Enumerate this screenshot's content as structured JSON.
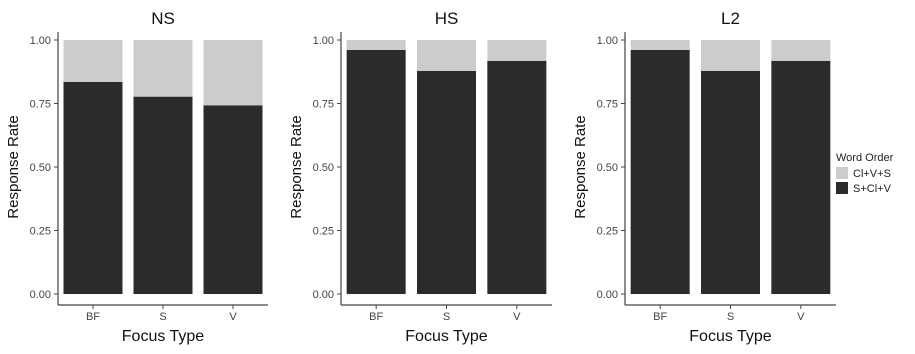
{
  "chart_data": [
    {
      "type": "bar",
      "stacked": true,
      "title": "NS",
      "xlabel": "Focus Type",
      "ylabel": "Response Rate",
      "categories": [
        "BF",
        "S",
        "V"
      ],
      "ylim": [
        0,
        1
      ],
      "yticks": [
        "0.00",
        "0.25",
        "0.50",
        "0.75",
        "1.00"
      ],
      "series": [
        {
          "name": "S+Cl+V",
          "values": [
            0.835,
            0.777,
            0.743
          ]
        },
        {
          "name": "Cl+V+S",
          "values": [
            0.165,
            0.223,
            0.257
          ]
        }
      ]
    },
    {
      "type": "bar",
      "stacked": true,
      "title": "HS",
      "xlabel": "Focus Type",
      "ylabel": "Response Rate",
      "categories": [
        "BF",
        "S",
        "V"
      ],
      "ylim": [
        0,
        1
      ],
      "yticks": [
        "0.00",
        "0.25",
        "0.50",
        "0.75",
        "1.00"
      ],
      "series": [
        {
          "name": "S+Cl+V",
          "values": [
            0.961,
            0.878,
            0.918
          ]
        },
        {
          "name": "Cl+V+S",
          "values": [
            0.039,
            0.122,
            0.082
          ]
        }
      ]
    },
    {
      "type": "bar",
      "stacked": true,
      "title": "L2",
      "xlabel": "Focus Type",
      "ylabel": "Response Rate",
      "categories": [
        "BF",
        "S",
        "V"
      ],
      "ylim": [
        0,
        1
      ],
      "yticks": [
        "0.00",
        "0.25",
        "0.50",
        "0.75",
        "1.00"
      ],
      "series": [
        {
          "name": "S+Cl+V",
          "values": [
            0.961,
            0.878,
            0.918
          ]
        },
        {
          "name": "Cl+V+S",
          "values": [
            0.039,
            0.122,
            0.082
          ]
        }
      ]
    }
  ],
  "legend": {
    "title": "Word Order",
    "placement": "right",
    "items": [
      {
        "label": "Cl+V+S",
        "color": "#cccccc"
      },
      {
        "label": "S+Cl+V",
        "color": "#2b2b2b"
      }
    ]
  },
  "colors": {
    "S+Cl+V": "#2b2b2b",
    "Cl+V+S": "#cccccc",
    "axis": "#444444"
  }
}
